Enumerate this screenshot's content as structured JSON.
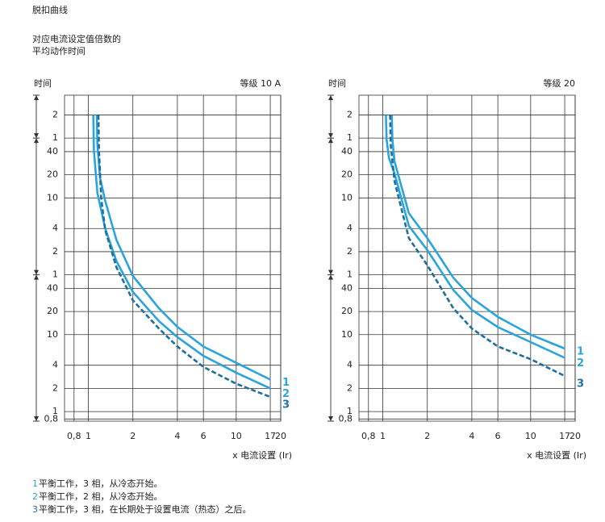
{
  "title": "脱扣曲线",
  "subtitle": [
    "对应电流设定值倍数的",
    "平均动作时间"
  ],
  "notes": [
    "平衡工作，3 相，从冷态开始。",
    "平衡工作，2 相，从冷态开始。",
    "平衡工作，3 相，在长期处于设置电流（热态）之后。"
  ],
  "chart_data": [
    {
      "type": "line",
      "ylabel": "时间",
      "class_label": "等级 10 A",
      "xlabel": "x 电流设置 (Ir)",
      "xscale": "log",
      "yscale": "log",
      "grid": true,
      "xlim": [
        0.69,
        20
      ],
      "xticks": [
        {
          "value": 0.8,
          "label": "0,8"
        },
        1,
        2,
        4,
        6,
        10,
        17,
        20
      ],
      "ylim": [
        0.75,
        13000
      ],
      "yticks": [
        {
          "value": 7200,
          "label": "2"
        },
        {
          "value": 3600,
          "label": "1"
        },
        {
          "value": 2400,
          "label": "40"
        },
        {
          "value": 1200,
          "label": "20"
        },
        {
          "value": 600,
          "label": "10"
        },
        {
          "value": 240,
          "label": "4"
        },
        {
          "value": 120,
          "label": "2"
        },
        {
          "value": 60,
          "label": "1"
        },
        40,
        20,
        10,
        4,
        2,
        1,
        {
          "value": 0.8,
          "label": "0,8"
        }
      ],
      "series": [
        {
          "name": "1",
          "color": "#2ba4dc",
          "style": "solid",
          "x": [
            1.14,
            1.15,
            1.2,
            1.3,
            1.55,
            2,
            3,
            4,
            6,
            10,
            17
          ],
          "values": [
            7200,
            3000,
            1100,
            550,
            170,
            58,
            22,
            12.6,
            7,
            4.3,
            2.6
          ]
        },
        {
          "name": "2",
          "color": "#2ba4dc",
          "style": "solid",
          "x": [
            1.08,
            1.09,
            1.15,
            1.3,
            1.55,
            2,
            3,
            4,
            6,
            10,
            17
          ],
          "values": [
            7200,
            2500,
            700,
            240,
            90,
            36,
            15,
            9.3,
            5.3,
            3.2,
            2
          ]
        },
        {
          "name": "3",
          "color": "#1e6e9f",
          "style": "dashed",
          "x": [
            1.17,
            1.18,
            1.22,
            1.3,
            1.55,
            2,
            3,
            4,
            6,
            10,
            17
          ],
          "values": [
            7200,
            2500,
            600,
            230,
            75,
            28,
            12,
            7,
            3.8,
            2.3,
            1.55
          ]
        }
      ]
    },
    {
      "type": "line",
      "ylabel": "时间",
      "class_label": "等级 20",
      "xlabel": "x 电流设置 (Ir)",
      "xscale": "log",
      "yscale": "log",
      "grid": true,
      "xlim": [
        0.69,
        20
      ],
      "xticks": [
        {
          "value": 0.8,
          "label": "0,8"
        },
        1,
        2,
        4,
        6,
        10,
        17,
        20
      ],
      "ylim": [
        0.75,
        13000
      ],
      "yticks": [
        {
          "value": 7200,
          "label": "2"
        },
        {
          "value": 3600,
          "label": "1"
        },
        {
          "value": 2400,
          "label": "40"
        },
        {
          "value": 1200,
          "label": "20"
        },
        {
          "value": 600,
          "label": "10"
        },
        {
          "value": 240,
          "label": "4"
        },
        {
          "value": 120,
          "label": "2"
        },
        {
          "value": 60,
          "label": "1"
        },
        40,
        20,
        10,
        4,
        2,
        1,
        {
          "value": 0.8,
          "label": "0,8"
        }
      ],
      "series": [
        {
          "name": "1",
          "color": "#2ba4dc",
          "style": "solid",
          "x": [
            1.15,
            1.16,
            1.2,
            1.5,
            2,
            3,
            4,
            6,
            10,
            17
          ],
          "values": [
            7200,
            3500,
            1800,
            380,
            180,
            55,
            30,
            17,
            10,
            6.6
          ]
        },
        {
          "name": "2",
          "color": "#2ba4dc",
          "style": "solid",
          "x": [
            1.05,
            1.06,
            1.1,
            1.2,
            1.5,
            2,
            3,
            4,
            6,
            10,
            17
          ],
          "values": [
            7200,
            3500,
            2000,
            1250,
            260,
            126,
            38,
            21,
            12.5,
            8,
            5
          ]
        },
        {
          "name": "3",
          "color": "#1e6e9f",
          "style": "dashed",
          "x": [
            1.12,
            1.13,
            1.2,
            1.5,
            2,
            3,
            4,
            6,
            10,
            17
          ],
          "values": [
            7200,
            3000,
            1000,
            180,
            80,
            22,
            12,
            7,
            4.8,
            2.9
          ]
        }
      ]
    }
  ]
}
